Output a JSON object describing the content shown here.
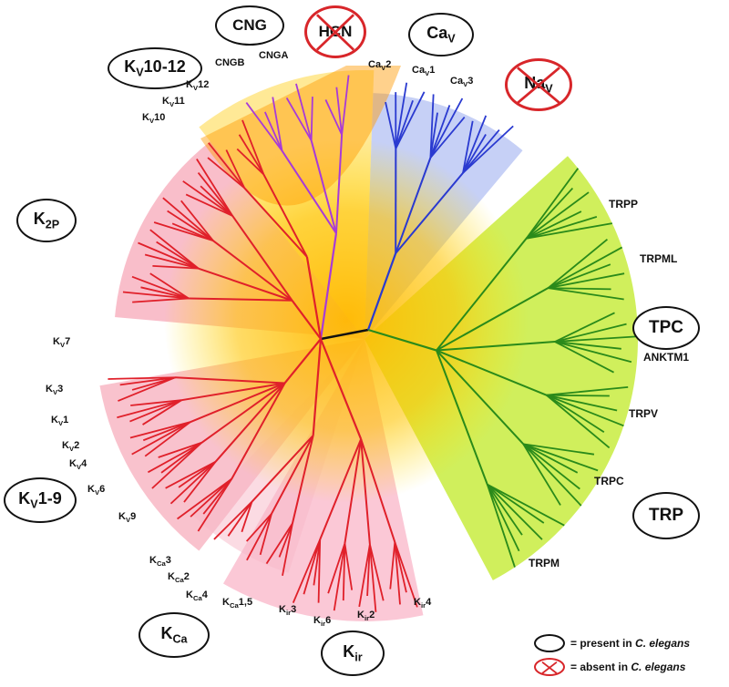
{
  "groups": {
    "cng": "CNG",
    "hcn": "HCN",
    "cav_base": "Ca",
    "cav_sub": "V",
    "nav_base": "Na",
    "nav_sub": "V",
    "kv1012_base": "K",
    "kv1012_sub": "V",
    "kv1012_rest": "10-12",
    "k2p_base": "K",
    "k2p_sub": "2P",
    "tpc": "TPC",
    "trp": "TRP",
    "kv19_base": "K",
    "kv19_sub": "V",
    "kv19_rest": "1-9",
    "kca_base": "K",
    "kca_sub": "Ca",
    "kir_base": "K",
    "kir_sub": "ir"
  },
  "leaf_labels": {
    "cngb": "CNGB",
    "cnga": "CNGA",
    "cav2_base": "Ca",
    "cav2_sub": "V",
    "cav2_num": "2",
    "cav1_base": "Ca",
    "cav1_sub": "V",
    "cav1_num": "1",
    "cav3_base": "Ca",
    "cav3_sub": "V",
    "cav3_num": "3",
    "kv12_base": "K",
    "kv12_sub": "V",
    "kv12_num": "12",
    "kv11_base": "K",
    "kv11_sub": "V",
    "kv11_num": "11",
    "kv10_base": "K",
    "kv10_sub": "V",
    "kv10_num": "10",
    "trpp": "TRPP",
    "trpml": "TRPML",
    "anktm1": "ANKTM1",
    "trpv": "TRPV",
    "trpc": "TRPC",
    "trpm": "TRPM",
    "kv7_base": "K",
    "kv7_sub": "V",
    "kv7_num": "7",
    "kv3_base": "K",
    "kv3_sub": "V",
    "kv3_num": "3",
    "kv1_base": "K",
    "kv1_sub": "V",
    "kv1_num": "1",
    "kv2_base": "K",
    "kv2_sub": "V",
    "kv2_num": "2",
    "kv4_base": "K",
    "kv4_sub": "V",
    "kv4_num": "4",
    "kv6_base": "K",
    "kv6_sub": "V",
    "kv6_num": "6",
    "kv9_base": "K",
    "kv9_sub": "V",
    "kv9_num": "9",
    "kca3_base": "K",
    "kca3_sub": "Ca",
    "kca3_num": "3",
    "kca2_base": "K",
    "kca2_sub": "Ca",
    "kca2_num": "2",
    "kca4_base": "K",
    "kca4_sub": "Ca",
    "kca4_num": "4",
    "kca15_base": "K",
    "kca15_sub": "Ca",
    "kca15_num": "1,5",
    "kir3_base": "K",
    "kir3_sub": "ir",
    "kir3_num": "3",
    "kir6_base": "K",
    "kir6_sub": "ir",
    "kir6_num": "6",
    "kir2_base": "K",
    "kir2_sub": "ir",
    "kir2_num": "2",
    "kir4_base": "K",
    "kir4_sub": "ir",
    "kir4_num": "4"
  },
  "legend": {
    "present_prefix": "= present in ",
    "present_species": "C. elegans",
    "absent_prefix": "= absent in ",
    "absent_species": "C. elegans"
  },
  "colors": {
    "potassium": "#e0202a",
    "cng": "#a83ad8",
    "calcium": "#2a3ad0",
    "trp": "#2a8a1a",
    "absent": "#d8262a"
  }
}
